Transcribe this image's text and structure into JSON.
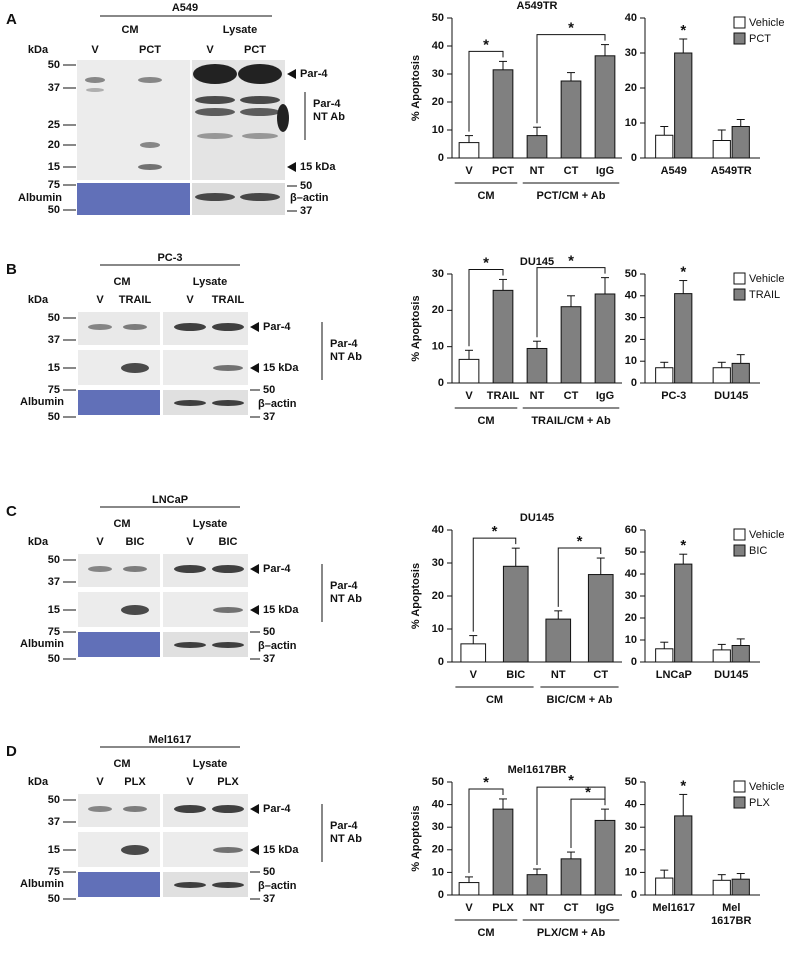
{
  "blots": [
    {
      "letter": "A",
      "title": "A549",
      "groups": [
        "CM",
        "Lysate"
      ],
      "kda": "kDa",
      "lanes": [
        "V",
        "PCT",
        "V",
        "PCT"
      ],
      "markers": [
        "50",
        "37",
        "25",
        "20",
        "15"
      ],
      "albumin_markers": [
        "75",
        "50"
      ],
      "albumin": "Albumin",
      "par4": "Par-4",
      "nt_ab": "Par-4 NT Ab",
      "kda15": "15 kDa",
      "actin_markers": [
        "50",
        "37"
      ],
      "actin": "β–actin"
    },
    {
      "letter": "B",
      "title": "PC-3",
      "groups": [
        "CM",
        "Lysate"
      ],
      "kda": "kDa",
      "lanes": [
        "V",
        "TRAIL",
        "V",
        "TRAIL"
      ],
      "markers": [
        "50",
        "37",
        "15"
      ],
      "albumin_markers": [
        "75",
        "50"
      ],
      "albumin": "Albumin",
      "par4": "Par-4",
      "nt_ab": "Par-4 NT Ab",
      "kda15": "15 kDa",
      "actin_markers": [
        "50",
        "37"
      ],
      "actin": "β–actin"
    },
    {
      "letter": "C",
      "title": "LNCaP",
      "groups": [
        "CM",
        "Lysate"
      ],
      "kda": "kDa",
      "lanes": [
        "V",
        "BIC",
        "V",
        "BIC"
      ],
      "markers": [
        "50",
        "37",
        "15"
      ],
      "albumin_markers": [
        "75",
        "50"
      ],
      "albumin": "Albumin",
      "par4": "Par-4",
      "nt_ab": "Par-4 NT Ab",
      "kda15": "15 kDa",
      "actin_markers": [
        "50",
        "37"
      ],
      "actin": "β–actin"
    },
    {
      "letter": "D",
      "title": "Mel1617",
      "groups": [
        "CM",
        "Lysate"
      ],
      "kda": "kDa",
      "lanes": [
        "V",
        "PLX",
        "V",
        "PLX"
      ],
      "markers": [
        "50",
        "37",
        "15"
      ],
      "albumin_markers": [
        "75",
        "50"
      ],
      "albumin": "Albumin",
      "par4": "Par-4",
      "nt_ab": "Par-4 NT Ab",
      "kda15": "15 kDa",
      "actin_markers": [
        "50",
        "37"
      ],
      "actin": "β–actin"
    }
  ],
  "chart_data": [
    {
      "type": "bar",
      "title": "A549TR",
      "ylabel": "% Apoptosis",
      "categories": [
        "V",
        "PCT",
        "NT",
        "CT",
        "IgG"
      ],
      "values": [
        5.5,
        31.5,
        8,
        27.5,
        36.5
      ],
      "errors": [
        2.5,
        3,
        3,
        3,
        4
      ],
      "colors": [
        "#ffffff",
        "#808080",
        "#808080",
        "#808080",
        "#808080"
      ],
      "ylim": [
        0,
        50
      ],
      "yticks": [
        0,
        10,
        20,
        30,
        40,
        50
      ],
      "groups": [
        {
          "label": "CM",
          "categories": [
            "V",
            "PCT"
          ]
        },
        {
          "label": "PCT/CM + Ab",
          "categories": [
            "NT",
            "CT",
            "IgG"
          ]
        }
      ],
      "significance": [
        {
          "from": "V",
          "to": "PCT",
          "label": "*"
        },
        {
          "from": "NT",
          "to": "IgG",
          "label": "*"
        }
      ]
    },
    {
      "type": "grouped_bar",
      "categories": [
        "A549",
        "A549TR"
      ],
      "series": [
        {
          "name": "Vehicle",
          "color": "#ffffff",
          "values": [
            6.5,
            5
          ],
          "errors": [
            2.5,
            3
          ]
        },
        {
          "name": "PCT",
          "color": "#808080",
          "values": [
            30,
            9
          ],
          "errors": [
            4,
            2
          ]
        }
      ],
      "ylim": [
        0,
        40
      ],
      "yticks": [
        0,
        10,
        20,
        30,
        40
      ],
      "annotations": [
        {
          "series": "PCT",
          "category": "A549",
          "label": "*"
        }
      ]
    },
    {
      "type": "bar",
      "title": "DU145",
      "ylabel": "% Apoptosis",
      "categories": [
        "V",
        "TRAIL",
        "NT",
        "CT",
        "IgG"
      ],
      "values": [
        6.5,
        25.5,
        9.5,
        21,
        24.5
      ],
      "errors": [
        2.5,
        3,
        2,
        3,
        4.5
      ],
      "colors": [
        "#ffffff",
        "#808080",
        "#808080",
        "#808080",
        "#808080"
      ],
      "ylim": [
        0,
        30
      ],
      "yticks": [
        0,
        10,
        20,
        30
      ],
      "groups": [
        {
          "label": "CM",
          "categories": [
            "V",
            "TRAIL"
          ]
        },
        {
          "label": "TRAIL/CM + Ab",
          "categories": [
            "NT",
            "CT",
            "IgG"
          ]
        }
      ],
      "significance": [
        {
          "from": "V",
          "to": "TRAIL",
          "label": "*"
        },
        {
          "from": "NT",
          "to": "IgG",
          "label": "*"
        }
      ]
    },
    {
      "type": "grouped_bar",
      "categories": [
        "PC-3",
        "DU145"
      ],
      "series": [
        {
          "name": "Vehicle",
          "color": "#ffffff",
          "values": [
            7,
            7
          ],
          "errors": [
            2.5,
            2.5
          ]
        },
        {
          "name": "TRAIL",
          "color": "#808080",
          "values": [
            41,
            9
          ],
          "errors": [
            6,
            4
          ]
        }
      ],
      "ylim": [
        0,
        50
      ],
      "yticks": [
        0,
        10,
        20,
        30,
        40,
        50
      ],
      "annotations": [
        {
          "series": "TRAIL",
          "category": "PC-3",
          "label": "*"
        }
      ]
    },
    {
      "type": "bar",
      "title": "DU145",
      "ylabel": "% Apoptosis",
      "categories": [
        "V",
        "BIC",
        "NT",
        "CT"
      ],
      "values": [
        5.5,
        29,
        13,
        26.5
      ],
      "errors": [
        2.5,
        5.5,
        2.5,
        5
      ],
      "colors": [
        "#ffffff",
        "#808080",
        "#808080",
        "#808080"
      ],
      "ylim": [
        0,
        40
      ],
      "yticks": [
        0,
        10,
        20,
        30,
        40
      ],
      "groups": [
        {
          "label": "CM",
          "categories": [
            "V",
            "BIC"
          ]
        },
        {
          "label": "BIC/CM + Ab",
          "categories": [
            "NT",
            "CT"
          ]
        }
      ],
      "significance": [
        {
          "from": "V",
          "to": "BIC",
          "label": "*"
        },
        {
          "from": "NT",
          "to": "CT",
          "label": "*"
        }
      ]
    },
    {
      "type": "grouped_bar",
      "categories": [
        "LNCaP",
        "DU145"
      ],
      "series": [
        {
          "name": "Vehicle",
          "color": "#ffffff",
          "values": [
            6,
            5.5
          ],
          "errors": [
            3,
            2.5
          ]
        },
        {
          "name": "BIC",
          "color": "#808080",
          "values": [
            44.5,
            7.5
          ],
          "errors": [
            4.5,
            3
          ]
        }
      ],
      "ylim": [
        0,
        60
      ],
      "yticks": [
        0,
        10,
        20,
        30,
        40,
        50,
        60
      ],
      "annotations": [
        {
          "series": "BIC",
          "category": "LNCaP",
          "label": "*"
        }
      ]
    },
    {
      "type": "bar",
      "title": "Mel1617BR",
      "ylabel": "% Apoptosis",
      "categories": [
        "V",
        "PLX",
        "NT",
        "CT",
        "IgG"
      ],
      "values": [
        5.5,
        38,
        9,
        16,
        33
      ],
      "errors": [
        2.5,
        4.5,
        2.5,
        3,
        5
      ],
      "colors": [
        "#ffffff",
        "#808080",
        "#808080",
        "#808080",
        "#808080"
      ],
      "ylim": [
        0,
        50
      ],
      "yticks": [
        0,
        10,
        20,
        30,
        40,
        50
      ],
      "groups": [
        {
          "label": "CM",
          "categories": [
            "V",
            "PLX"
          ]
        },
        {
          "label": "PLX/CM + Ab",
          "categories": [
            "NT",
            "CT",
            "IgG"
          ]
        }
      ],
      "significance": [
        {
          "from": "V",
          "to": "PLX",
          "label": "*"
        },
        {
          "from": "CT",
          "to": "IgG",
          "label": "*"
        },
        {
          "from": "NT",
          "to": "IgG",
          "label": "*"
        }
      ]
    },
    {
      "type": "grouped_bar",
      "categories": [
        "Mel1617",
        "Mel 1617BR"
      ],
      "series": [
        {
          "name": "Vehicle",
          "color": "#ffffff",
          "values": [
            7.5,
            6.5
          ],
          "errors": [
            3.5,
            2.5
          ]
        },
        {
          "name": "PLX",
          "color": "#808080",
          "values": [
            35,
            7
          ],
          "errors": [
            9.5,
            2.5
          ]
        }
      ],
      "ylim": [
        0,
        50
      ],
      "yticks": [
        0,
        10,
        20,
        30,
        40,
        50
      ],
      "annotations": [
        {
          "series": "PLX",
          "category": "Mel1617",
          "label": "*"
        }
      ]
    }
  ]
}
